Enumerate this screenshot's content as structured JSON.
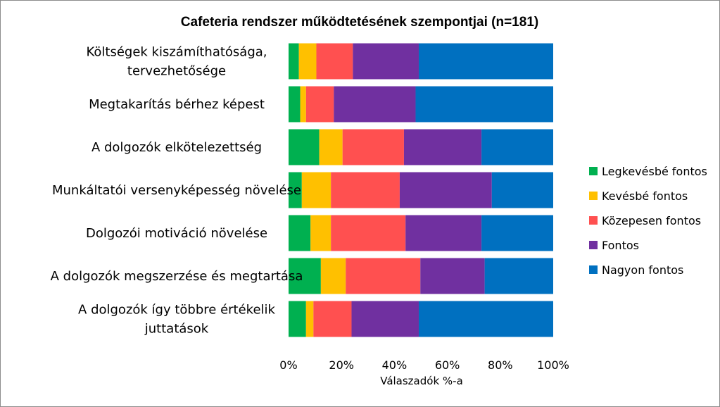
{
  "chart_data": {
    "type": "bar",
    "orientation": "horizontal",
    "stacked": "percent",
    "title": "Cafeteria rendszer működtetésének szempontjai (n=181)",
    "xlabel": "Válaszadók %-a",
    "ylabel": "",
    "xlim": [
      0,
      100
    ],
    "x_ticks": [
      "0%",
      "20%",
      "40%",
      "60%",
      "80%",
      "100%"
    ],
    "grid": false,
    "legend_position": "right",
    "categories": [
      [
        "Költségek kiszámíthatósága,",
        "tervezhetősége"
      ],
      [
        "Megtakarítás bérhez képest"
      ],
      [
        "A dolgozók elkötelezettség"
      ],
      [
        "Munkáltatói versenyképesség növelése"
      ],
      [
        "Dolgozói motiváció növelése"
      ],
      [
        "A dolgozók megszerzése és megtartása"
      ],
      [
        "A dolgozók így többre értékelik",
        "juttatások"
      ]
    ],
    "series": [
      {
        "name": "Legkevésbé fontos",
        "color": "#00b050",
        "values": [
          3.9,
          4.4,
          11.6,
          5.0,
          8.3,
          12.2,
          6.6
        ]
      },
      {
        "name": "Kevésbé fontos",
        "color": "#ffc000",
        "values": [
          6.6,
          2.2,
          8.8,
          11.0,
          7.7,
          9.4,
          2.8
        ]
      },
      {
        "name": "Közepesen fontos",
        "color": "#ff5050",
        "values": [
          13.8,
          10.5,
          23.2,
          26.0,
          28.2,
          28.2,
          14.4
        ]
      },
      {
        "name": "Fontos",
        "color": "#7030a0",
        "values": [
          24.9,
          30.9,
          29.3,
          34.8,
          28.7,
          24.3,
          25.4
        ]
      },
      {
        "name": "Nagyon fontos",
        "color": "#0070c0",
        "values": [
          50.8,
          52.0,
          27.1,
          23.2,
          27.1,
          25.9,
          50.8
        ]
      }
    ]
  }
}
